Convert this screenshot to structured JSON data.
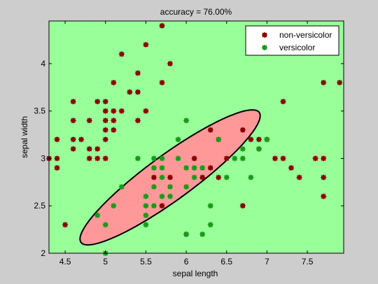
{
  "chart_data": {
    "type": "scatter",
    "title": "accuracy = 76.00%",
    "xlabel": "sepal length",
    "ylabel": "sepal width",
    "xlim": [
      4.3,
      7.95
    ],
    "ylim": [
      2.0,
      4.45
    ],
    "xticks": [
      "4.5",
      "5",
      "5.5",
      "6",
      "6.5",
      "7",
      "7.5"
    ],
    "yticks": [
      "2",
      "2.5",
      "3",
      "3.5",
      "4"
    ],
    "legend_position": "top-right",
    "legend": [
      {
        "label": "non-versicolor",
        "color": "#8b0000"
      },
      {
        "label": "versicolor",
        "color": "#1a9a1a"
      }
    ],
    "background_color": "#99ff99",
    "region_color": "#ff9999",
    "decision_boundary": "ellipse",
    "series": [
      {
        "name": "non-versicolor",
        "color": "#8b0000",
        "points": [
          [
            4.3,
            3.0
          ],
          [
            4.4,
            3.2
          ],
          [
            4.4,
            2.9
          ],
          [
            4.4,
            3.0
          ],
          [
            4.5,
            2.3
          ],
          [
            4.6,
            3.1
          ],
          [
            4.6,
            3.4
          ],
          [
            4.6,
            3.6
          ],
          [
            4.6,
            3.2
          ],
          [
            4.7,
            3.2
          ],
          [
            4.8,
            3.4
          ],
          [
            4.8,
            3.0
          ],
          [
            4.8,
            3.1
          ],
          [
            4.9,
            3.0
          ],
          [
            4.9,
            3.1
          ],
          [
            4.9,
            3.6
          ],
          [
            5.0,
            3.6
          ],
          [
            5.0,
            3.4
          ],
          [
            5.0,
            3.0
          ],
          [
            5.0,
            3.3
          ],
          [
            5.0,
            3.5
          ],
          [
            5.0,
            3.2
          ],
          [
            5.1,
            3.5
          ],
          [
            5.1,
            3.8
          ],
          [
            5.1,
            3.3
          ],
          [
            5.1,
            3.4
          ],
          [
            5.2,
            3.5
          ],
          [
            5.2,
            4.1
          ],
          [
            5.3,
            3.7
          ],
          [
            5.4,
            3.9
          ],
          [
            5.4,
            3.7
          ],
          [
            5.4,
            3.4
          ],
          [
            5.5,
            4.2
          ],
          [
            5.5,
            3.5
          ],
          [
            5.7,
            4.4
          ],
          [
            5.7,
            3.8
          ],
          [
            5.8,
            4.0
          ],
          [
            5.7,
            2.5
          ],
          [
            5.6,
            2.8
          ],
          [
            5.8,
            2.8
          ],
          [
            6.0,
            2.2
          ],
          [
            6.1,
            3.0
          ],
          [
            6.2,
            2.8
          ],
          [
            6.3,
            2.9
          ],
          [
            6.3,
            3.3
          ],
          [
            6.4,
            2.8
          ],
          [
            6.4,
            3.2
          ],
          [
            6.5,
            3.0
          ],
          [
            6.7,
            2.5
          ],
          [
            6.7,
            3.3
          ],
          [
            6.8,
            3.2
          ],
          [
            6.9,
            3.2
          ],
          [
            6.9,
            3.1
          ],
          [
            7.0,
            3.2
          ],
          [
            7.1,
            3.0
          ],
          [
            7.2,
            3.6
          ],
          [
            7.2,
            3.0
          ],
          [
            7.3,
            2.9
          ],
          [
            7.4,
            2.8
          ],
          [
            7.6,
            3.0
          ],
          [
            7.7,
            3.8
          ],
          [
            7.7,
            2.6
          ],
          [
            7.7,
            2.8
          ],
          [
            7.7,
            3.0
          ],
          [
            7.9,
            3.8
          ]
        ]
      },
      {
        "name": "versicolor",
        "color": "#1a9a1a",
        "points": [
          [
            4.9,
            2.4
          ],
          [
            5.0,
            2.0
          ],
          [
            5.0,
            2.3
          ],
          [
            5.1,
            2.5
          ],
          [
            5.2,
            2.7
          ],
          [
            5.4,
            3.0
          ],
          [
            5.5,
            2.3
          ],
          [
            5.5,
            2.4
          ],
          [
            5.5,
            2.5
          ],
          [
            5.5,
            2.6
          ],
          [
            5.6,
            2.9
          ],
          [
            5.6,
            3.0
          ],
          [
            5.6,
            2.5
          ],
          [
            5.6,
            2.7
          ],
          [
            5.7,
            2.6
          ],
          [
            5.7,
            2.8
          ],
          [
            5.7,
            2.9
          ],
          [
            5.7,
            3.0
          ],
          [
            5.8,
            2.7
          ],
          [
            5.8,
            2.6
          ],
          [
            5.9,
            3.0
          ],
          [
            5.9,
            3.2
          ],
          [
            6.0,
            2.2
          ],
          [
            6.0,
            2.7
          ],
          [
            6.0,
            2.9
          ],
          [
            6.0,
            3.4
          ],
          [
            6.1,
            2.8
          ],
          [
            6.1,
            2.9
          ],
          [
            6.2,
            2.2
          ],
          [
            6.2,
            2.9
          ],
          [
            6.3,
            2.3
          ],
          [
            6.3,
            2.5
          ],
          [
            6.4,
            3.2
          ],
          [
            6.5,
            2.8
          ],
          [
            6.6,
            3.0
          ],
          [
            6.7,
            3.1
          ],
          [
            6.7,
            3.0
          ],
          [
            6.8,
            2.8
          ],
          [
            6.9,
            3.1
          ],
          [
            7.0,
            3.2
          ]
        ]
      }
    ]
  }
}
